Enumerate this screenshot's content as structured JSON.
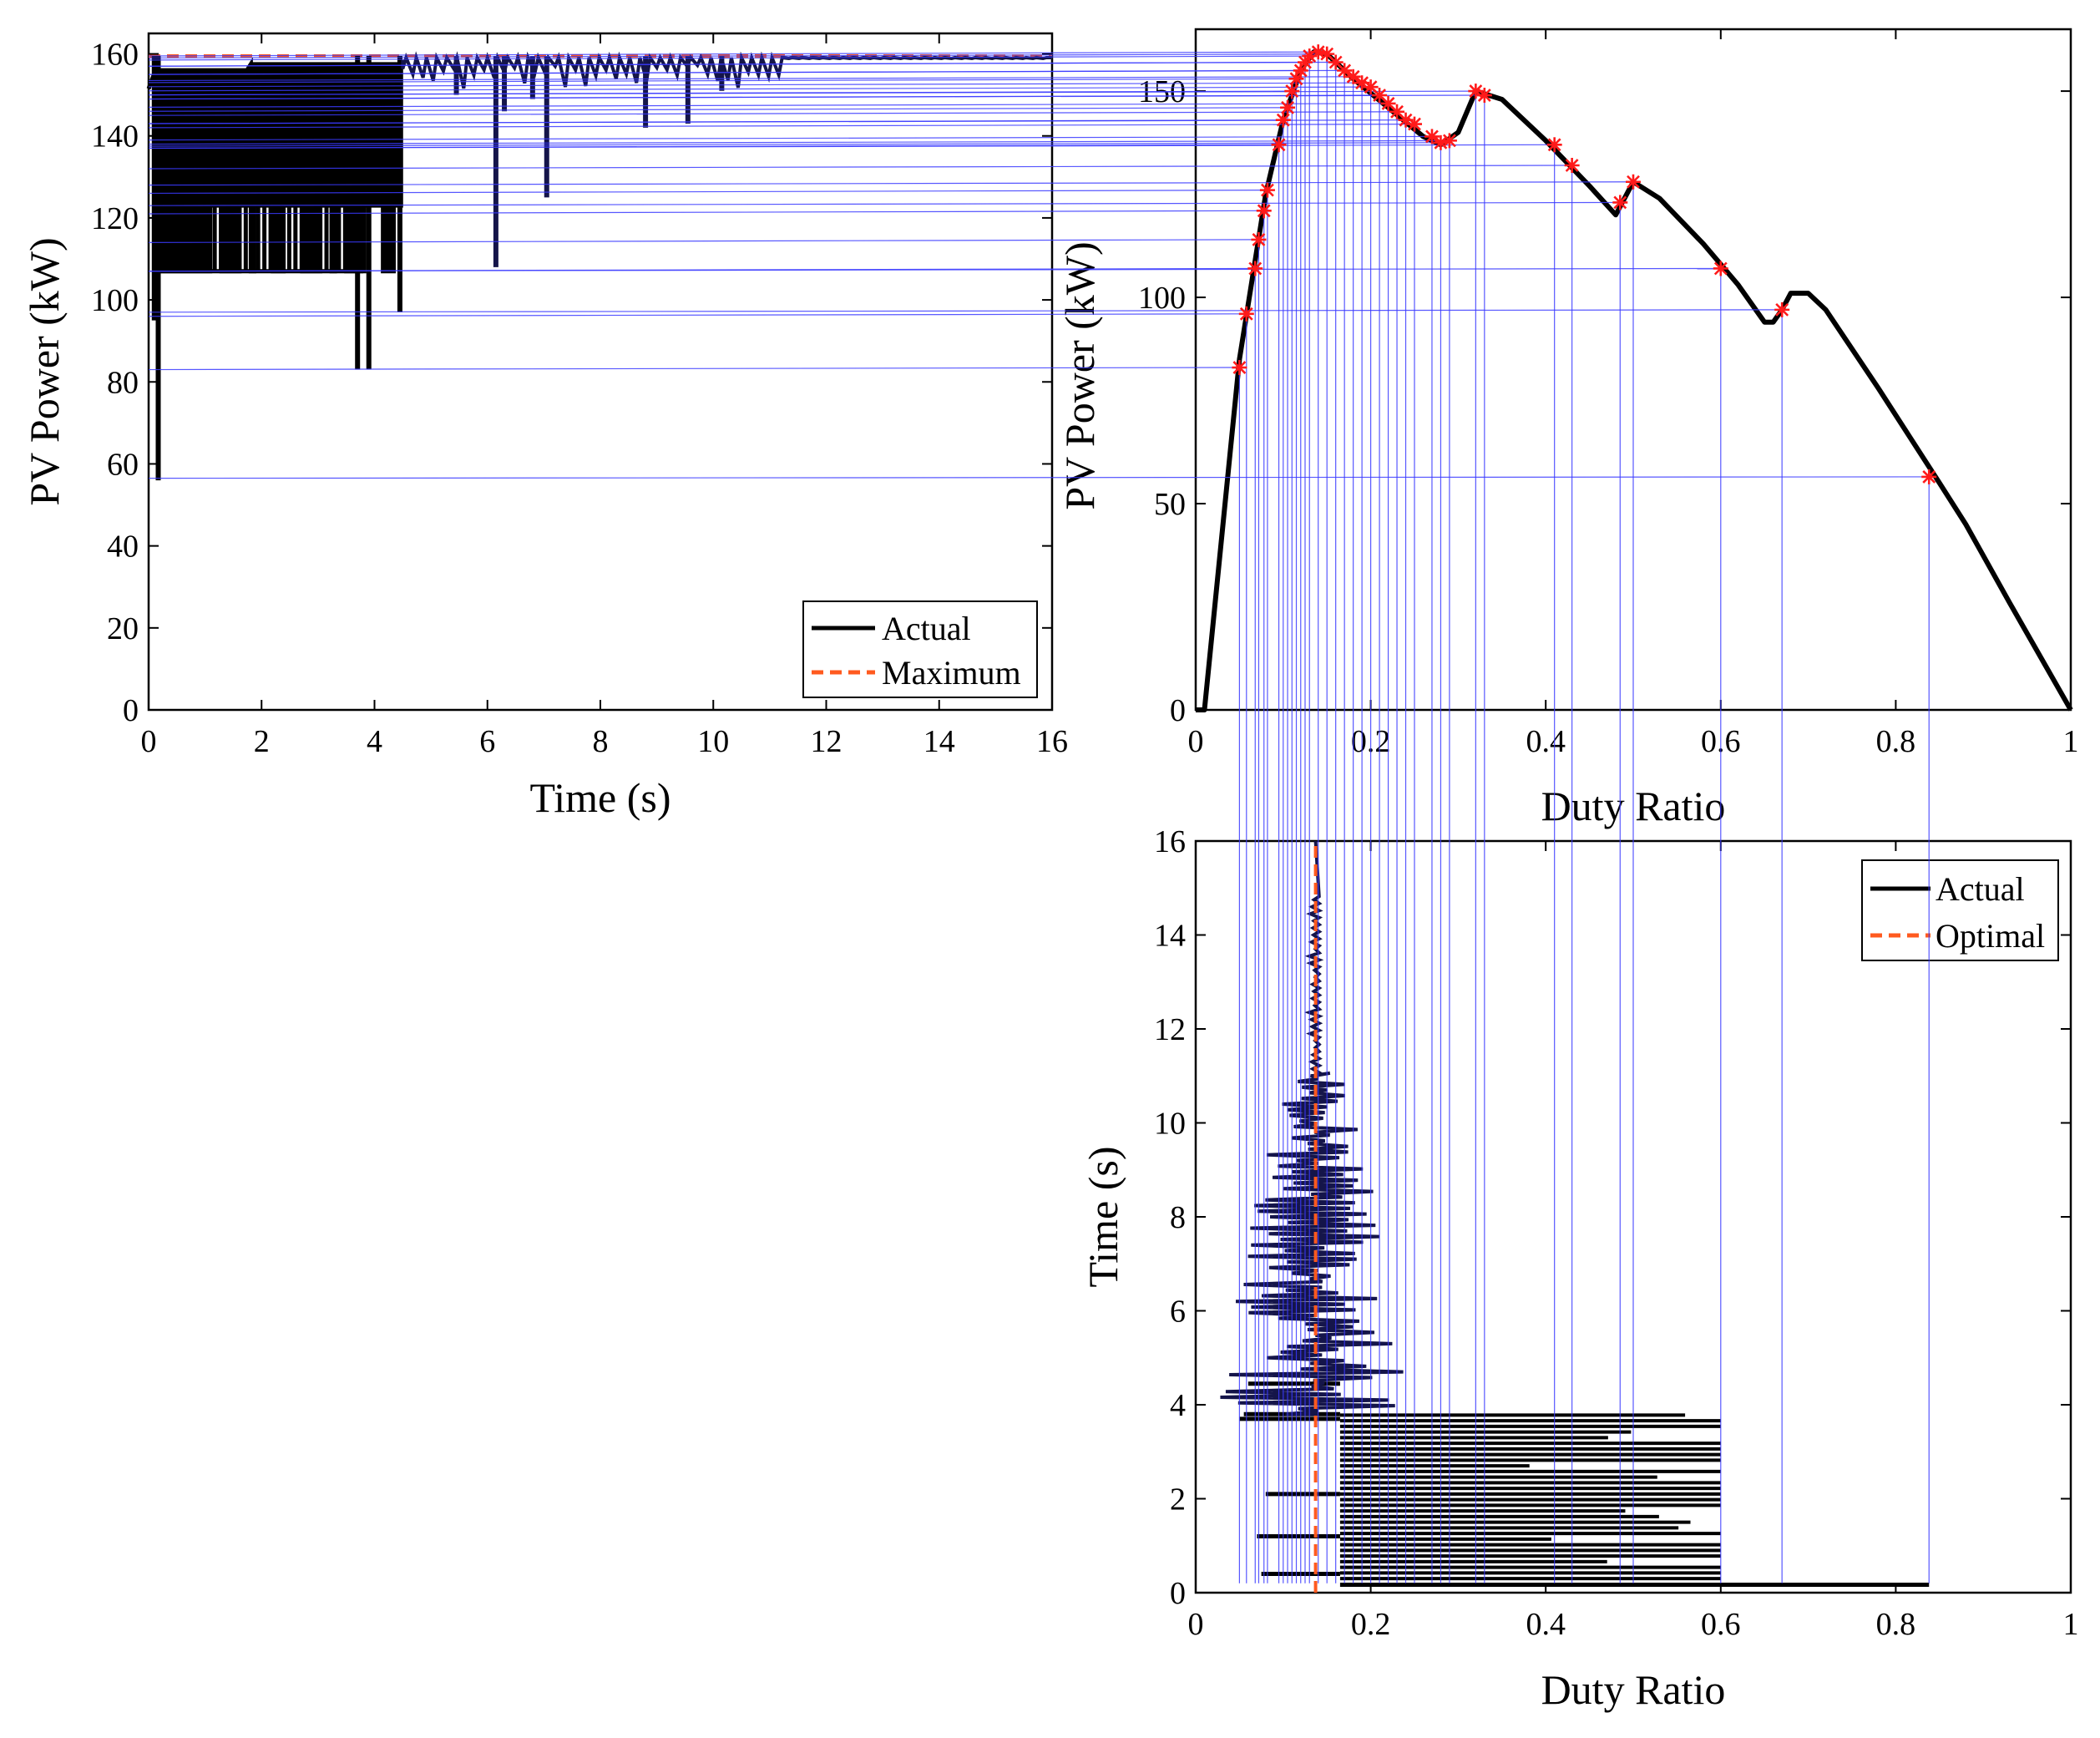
{
  "colors": {
    "actual": "#000000",
    "maximum": "#ff5a1f",
    "guide": "#3a3aff",
    "marker": "#ff1a1a",
    "trace_tint": "#15154a"
  },
  "chart_data": [
    {
      "id": "power_vs_time",
      "type": "line",
      "xlabel": "Time (s)",
      "ylabel": "PV Power (kW)",
      "xlim": [
        0,
        16
      ],
      "ylim": [
        0,
        165
      ],
      "xticks": [
        0,
        2,
        4,
        6,
        8,
        10,
        12,
        14,
        16
      ],
      "yticks": [
        0,
        20,
        40,
        60,
        80,
        100,
        120,
        140,
        160
      ],
      "legend": [
        "Actual",
        "Maximum"
      ],
      "legend_position": "bottom-right",
      "maximum_power": 159.5,
      "tracking": {
        "oscillation_end_time": 4.5,
        "steady_time": 11.3,
        "oscillation_levels": [
          107,
          123,
          156
        ],
        "early_dips": [
          {
            "t": 0.1,
            "p": 95
          },
          {
            "t": 0.17,
            "p": 56
          },
          {
            "t": 3.7,
            "p": 83
          },
          {
            "t": 3.9,
            "p": 83
          },
          {
            "t": 4.45,
            "p": 97
          }
        ],
        "late_dips": [
          {
            "t": 6.15,
            "p": 108
          },
          {
            "t": 7.05,
            "p": 125
          },
          {
            "t": 6.3,
            "p": 146
          },
          {
            "t": 8.8,
            "p": 142
          },
          {
            "t": 9.55,
            "p": 143
          },
          {
            "t": 10.15,
            "p": 151
          },
          {
            "t": 5.45,
            "p": 150
          },
          {
            "t": 6.8,
            "p": 149
          }
        ]
      }
    },
    {
      "id": "power_vs_duty",
      "type": "line",
      "xlabel": "Duty Ratio",
      "ylabel": "PV Power (kW)",
      "xlim": [
        0,
        1
      ],
      "ylim": [
        0,
        165
      ],
      "xticks": [
        0,
        0.2,
        0.4,
        0.6,
        0.8,
        1
      ],
      "xtick_labels": [
        "0",
        "0.2",
        "0.4",
        "0.6",
        "0.8",
        "1"
      ],
      "yticks": [
        0,
        50,
        100,
        150
      ],
      "pv_curve": {
        "d": [
          0,
          0.01,
          0.05,
          0.08,
          0.1,
          0.12,
          0.135,
          0.15,
          0.18,
          0.22,
          0.26,
          0.28,
          0.3,
          0.32,
          0.35,
          0.4,
          0.45,
          0.48,
          0.5,
          0.53,
          0.58,
          0.62,
          0.65,
          0.66,
          0.67,
          0.68,
          0.7,
          0.72,
          0.78,
          0.85,
          0.88,
          0.93,
          1.0
        ],
        "p": [
          0,
          0,
          85,
          125,
          143,
          155,
          159.5,
          159,
          153,
          146,
          139,
          137,
          140,
          150,
          148,
          138,
          127,
          120,
          128,
          124,
          113,
          103,
          94,
          94,
          97,
          101,
          101,
          97,
          78,
          55,
          45,
          26,
          0
        ]
      },
      "samples": {
        "d": [
          0.05,
          0.058,
          0.068,
          0.072,
          0.078,
          0.082,
          0.095,
          0.1,
          0.105,
          0.11,
          0.115,
          0.12,
          0.125,
          0.13,
          0.14,
          0.15,
          0.16,
          0.17,
          0.18,
          0.19,
          0.2,
          0.21,
          0.22,
          0.23,
          0.24,
          0.25,
          0.27,
          0.28,
          0.29,
          0.32,
          0.33,
          0.41,
          0.43,
          0.485,
          0.5,
          0.6,
          0.67,
          0.838
        ],
        "p": [
          83,
          96,
          107,
          114,
          121,
          126,
          137,
          143,
          146,
          150,
          153,
          155,
          157,
          158.5,
          159.5,
          159,
          157,
          155,
          153.5,
          152,
          151,
          149,
          147,
          145,
          143,
          142,
          139,
          137.5,
          138,
          150,
          149,
          137,
          132,
          123,
          128,
          107,
          97,
          56.5
        ]
      }
    },
    {
      "id": "time_vs_duty",
      "type": "line",
      "xlabel": "Duty Ratio",
      "ylabel": "Time (s)",
      "xlim": [
        0,
        1
      ],
      "ylim": [
        0,
        16
      ],
      "xticks": [
        0,
        0.2,
        0.4,
        0.6,
        0.8,
        1
      ],
      "xtick_labels": [
        "0",
        "0.2",
        "0.4",
        "0.6",
        "0.8",
        "1"
      ],
      "yticks": [
        0,
        2,
        4,
        6,
        8,
        10,
        12,
        14,
        16
      ],
      "legend": [
        "Actual",
        "Optimal"
      ],
      "legend_position": "top-right",
      "optimal_duty": 0.137,
      "tracking": {
        "wide_sweep_end_time": 3.8,
        "wide_sweep_max_duty": 0.6,
        "outlier": {
          "t": 0.17,
          "d": 0.838
        },
        "final_time": 16
      }
    }
  ]
}
